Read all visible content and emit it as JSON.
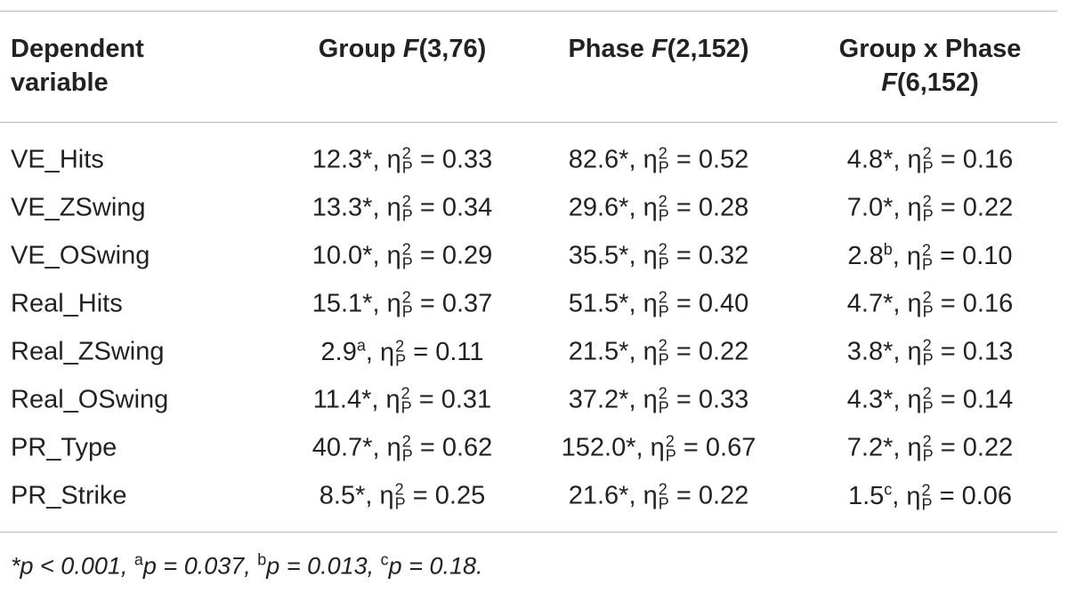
{
  "table": {
    "header": [
      {
        "name": "Dependent",
        "name2": "variable"
      },
      {
        "name": "Group",
        "stat": "F",
        "df": "(3,76)"
      },
      {
        "name": "Phase",
        "stat": "F",
        "df": "(2,152)"
      },
      {
        "name": "Group x Phase",
        "stat": "F",
        "df": "(6,152)"
      }
    ],
    "notation": {
      "separator": ",",
      "eta": "η",
      "square": "2",
      "partial": "P",
      "equals": "="
    },
    "rows": [
      {
        "variable": "VE_Hits",
        "cells": [
          {
            "f": "12.3",
            "mark": "*",
            "eta": "0.33"
          },
          {
            "f": "82.6",
            "mark": "*",
            "eta": "0.52"
          },
          {
            "f": "4.8",
            "mark": "*",
            "eta": "0.16"
          }
        ]
      },
      {
        "variable": "VE_ZSwing",
        "cells": [
          {
            "f": "13.3",
            "mark": "*",
            "eta": "0.34"
          },
          {
            "f": "29.6",
            "mark": "*",
            "eta": "0.28"
          },
          {
            "f": "7.0",
            "mark": "*",
            "eta": "0.22"
          }
        ]
      },
      {
        "variable": "VE_OSwing",
        "cells": [
          {
            "f": "10.0",
            "mark": "*",
            "eta": "0.29"
          },
          {
            "f": "35.5",
            "mark": "*",
            "eta": "0.32"
          },
          {
            "f": "2.8",
            "sup": "b",
            "eta": "0.10"
          }
        ]
      },
      {
        "variable": "Real_Hits",
        "cells": [
          {
            "f": "15.1",
            "mark": "*",
            "eta": "0.37"
          },
          {
            "f": "51.5",
            "mark": "*",
            "eta": "0.40"
          },
          {
            "f": "4.7",
            "mark": "*",
            "eta": "0.16"
          }
        ]
      },
      {
        "variable": "Real_ZSwing",
        "cells": [
          {
            "f": "2.9",
            "sup": "a",
            "eta": "0.11"
          },
          {
            "f": "21.5",
            "mark": "*",
            "eta": "0.22"
          },
          {
            "f": "3.8",
            "mark": "*",
            "eta": "0.13"
          }
        ]
      },
      {
        "variable": "Real_OSwing",
        "cells": [
          {
            "f": "11.4",
            "mark": "*",
            "eta": "0.31"
          },
          {
            "f": "37.2",
            "mark": "*",
            "eta": "0.33"
          },
          {
            "f": "4.3",
            "mark": "*",
            "eta": "0.14"
          }
        ]
      },
      {
        "variable": "PR_Type",
        "cells": [
          {
            "f": "40.7",
            "mark": "*",
            "eta": "0.62"
          },
          {
            "f": "152.0",
            "mark": "*",
            "eta": "0.67"
          },
          {
            "f": "7.2",
            "mark": "*",
            "eta": "0.22"
          }
        ]
      },
      {
        "variable": "PR_Strike",
        "cells": [
          {
            "f": "8.5",
            "mark": "*",
            "eta": "0.25"
          },
          {
            "f": "21.6",
            "mark": "*",
            "eta": "0.22"
          },
          {
            "f": "1.5",
            "sup": "c",
            "eta": "0.06"
          }
        ]
      }
    ],
    "footnote": [
      {
        "mark": "*",
        "text": "p < 0.001,"
      },
      {
        "sup": "a",
        "text": "p = 0.037,"
      },
      {
        "sup": "b",
        "text": "p = 0.013,"
      },
      {
        "sup": "c",
        "text": "p = 0.18."
      }
    ]
  }
}
